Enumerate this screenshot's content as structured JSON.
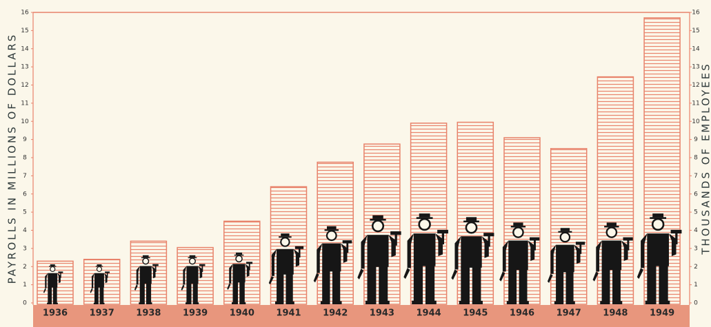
{
  "chart_data": {
    "type": "bar",
    "y_label": "PAYROLLS IN MILLIONS OF DOLLARS",
    "y2_label": "THOUSANDS OF EMPLOYEES",
    "categories": [
      "1936",
      "1937",
      "1938",
      "1939",
      "1940",
      "1941",
      "1942",
      "1943",
      "1944",
      "1945",
      "1946",
      "1947",
      "1948",
      "1949"
    ],
    "series": [
      {
        "color": "#e8826a",
        "values": [
          2.3,
          2.4,
          3.4,
          3.05,
          4.5,
          6.4,
          7.75,
          8.75,
          9.9,
          9.95,
          9.1,
          8.5,
          12.45,
          15.7
        ]
      },
      {
        "color": "#161616",
        "axis": "y2",
        "values": [
          2.2,
          2.2,
          2.7,
          2.7,
          2.85,
          3.9,
          4.3,
          4.9,
          5.0,
          4.8,
          4.5,
          4.2,
          4.5,
          5.0
        ]
      }
    ],
    "ylim": [
      0,
      16
    ],
    "yticks": [
      0,
      1,
      2,
      3,
      4,
      5,
      6,
      7,
      8,
      9,
      10,
      11,
      12,
      13,
      14,
      15,
      16
    ],
    "y2lim": [
      0,
      16
    ],
    "y2ticks": [
      0,
      1,
      2,
      3,
      4,
      5,
      6,
      7,
      8,
      9,
      10,
      11,
      12,
      13,
      14,
      15,
      16
    ]
  }
}
